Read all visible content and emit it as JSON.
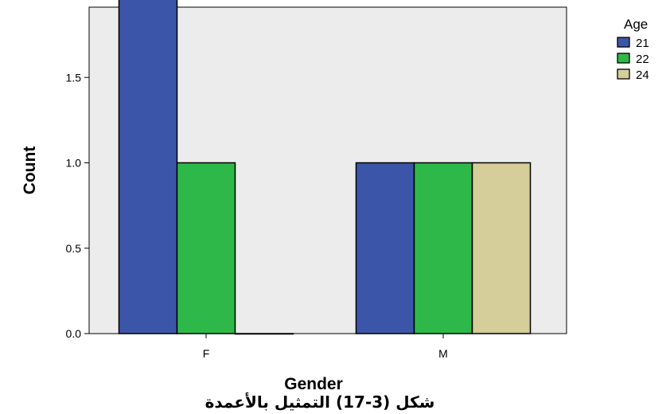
{
  "chart_data": {
    "type": "bar",
    "xlabel": "Gender",
    "ylabel": "Count",
    "categories": [
      "F",
      "M"
    ],
    "series": [
      {
        "name": "21",
        "values": [
          2,
          1
        ]
      },
      {
        "name": "22",
        "values": [
          1,
          1
        ]
      },
      {
        "name": "24",
        "values": [
          0,
          1
        ]
      }
    ],
    "ylim": [
      0,
      2.0
    ],
    "yticks": [
      "0.0",
      "0.5",
      "1.0",
      "1.5",
      "2.0"
    ],
    "grid": false,
    "legend": {
      "title": "Age",
      "position": "top-right"
    },
    "colors": {
      "plot_background": "#ececec",
      "series": [
        "#3b56a8",
        "#2eb84a",
        "#d5cd9a"
      ]
    }
  },
  "caption": "شكل (3-17) التمثيل بالأعمدة"
}
